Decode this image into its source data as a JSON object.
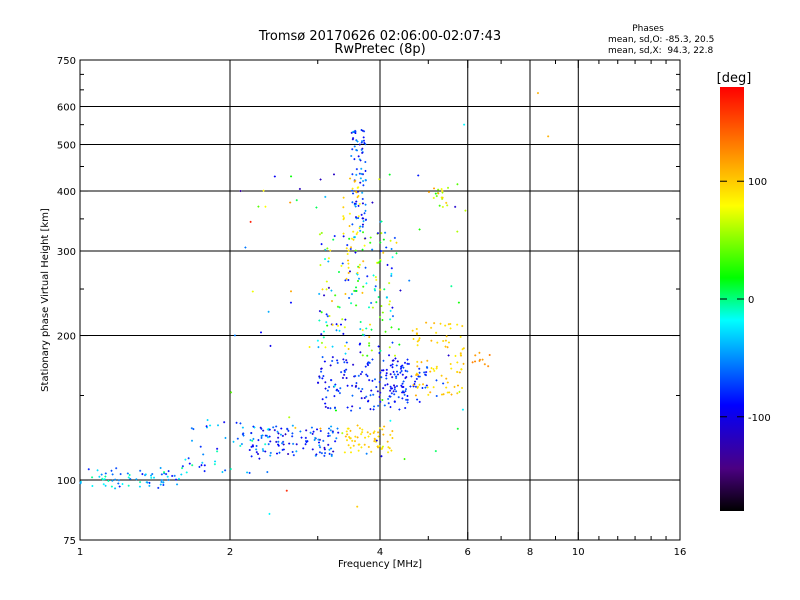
{
  "chart_data": {
    "type": "scatter",
    "title": "Tromsø 20170626 02:06:00-02:07:43",
    "subtitle": "RwPretec (8p)",
    "xlabel": "Frequency [MHz]",
    "ylabel": "Stationary phase Virtual Height [km]",
    "x_scale": "log",
    "y_scale": "log",
    "xlim": [
      1,
      16
    ],
    "ylim": [
      75,
      750
    ],
    "x_ticks": [
      1,
      2,
      4,
      6,
      8,
      10,
      16
    ],
    "x_minor_ticks": [
      3,
      5,
      7,
      9,
      11,
      12,
      13,
      14,
      15
    ],
    "x_gridlines": [
      2,
      4,
      6,
      8,
      10
    ],
    "y_ticks": [
      75,
      100,
      200,
      300,
      400,
      500,
      600,
      750
    ],
    "y_minor_ticks": [
      150,
      250,
      350,
      450,
      550,
      650,
      700
    ],
    "y_gridlines": [
      100,
      200,
      300,
      400,
      500,
      600
    ],
    "grid": true,
    "stats": {
      "title": "Phases",
      "o_line": "mean, sd,O: -85.3, 20.5",
      "x_line": "mean, sd,X:  94.3, 22.8"
    },
    "colorbar": {
      "label": "[deg]",
      "range": [
        -180,
        180
      ],
      "ticks": [
        100,
        0,
        -100
      ],
      "tick_labels": [
        "100",
        "0",
        "-100"
      ]
    },
    "clusters": [
      {
        "name": "low-trace",
        "f": [
          1.0,
          1.6
        ],
        "h": [
          96,
          106
        ],
        "phase": [
          -90,
          0
        ],
        "count": 70
      },
      {
        "name": "e-rise",
        "f": [
          1.6,
          2.4
        ],
        "h": [
          103,
          135
        ],
        "phase": [
          -100,
          0
        ],
        "count": 60
      },
      {
        "name": "e-trace",
        "f": [
          2.2,
          3.3
        ],
        "h": [
          112,
          130
        ],
        "phase": [
          -120,
          -40
        ],
        "count": 110
      },
      {
        "name": "e-x",
        "f": [
          3.4,
          4.3
        ],
        "h": [
          114,
          130
        ],
        "phase": [
          85,
          110
        ],
        "count": 60
      },
      {
        "name": "f-low",
        "f": [
          3.0,
          4.6
        ],
        "h": [
          140,
          180
        ],
        "phase": [
          -110,
          -60
        ],
        "count": 140
      },
      {
        "name": "f-mid",
        "f": [
          4.0,
          5.2
        ],
        "h": [
          145,
          175
        ],
        "phase": [
          -95,
          -60
        ],
        "count": 60
      },
      {
        "name": "f-x",
        "f": [
          4.6,
          5.9
        ],
        "h": [
          150,
          215
        ],
        "phase": [
          85,
          115
        ],
        "count": 80
      },
      {
        "name": "spread-f",
        "f": [
          3.0,
          4.4
        ],
        "h": [
          180,
          330
        ],
        "phase": [
          -115,
          110
        ],
        "count": 170
      },
      {
        "name": "spike",
        "f": [
          3.5,
          3.75
        ],
        "h": [
          330,
          540
        ],
        "phase": [
          -110,
          -40
        ],
        "count": 80
      },
      {
        "name": "spike-x",
        "f": [
          3.35,
          3.65
        ],
        "h": [
          250,
          430
        ],
        "phase": [
          80,
          110
        ],
        "count": 35
      },
      {
        "name": "high-cluster",
        "f": [
          5.0,
          5.5
        ],
        "h": [
          370,
          410
        ],
        "phase": [
          20,
          120
        ],
        "count": 18
      },
      {
        "name": "far-x",
        "f": [
          6.1,
          6.8
        ],
        "h": [
          172,
          185
        ],
        "phase": [
          115,
          130
        ],
        "count": 10
      },
      {
        "name": "sparse",
        "f": [
          2.0,
          6.0
        ],
        "h": [
          110,
          450
        ],
        "phase": [
          -120,
          120
        ],
        "count": 70
      }
    ],
    "outliers": [
      {
        "f": 8.3,
        "h": 640,
        "phase": 110
      },
      {
        "f": 8.7,
        "h": 520,
        "phase": 110
      },
      {
        "f": 5.9,
        "h": 550,
        "phase": -20
      },
      {
        "f": 2.6,
        "h": 95,
        "phase": 165
      },
      {
        "f": 2.4,
        "h": 85,
        "phase": -20
      },
      {
        "f": 3.6,
        "h": 88,
        "phase": 100
      },
      {
        "f": 2.1,
        "h": 400,
        "phase": -130
      },
      {
        "f": 2.2,
        "h": 345,
        "phase": 170
      }
    ]
  }
}
